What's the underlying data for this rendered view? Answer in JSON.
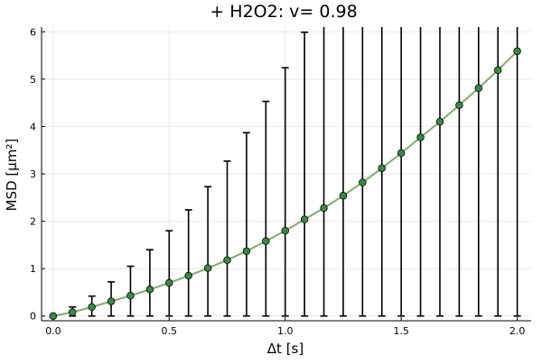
{
  "chart_data": {
    "type": "line",
    "title": "+ H2O2: v= 0.98",
    "xlabel": "Δt [s]",
    "ylabel": "MSD [µm²]",
    "xlim": [
      -0.05,
      2.06
    ],
    "ylim": [
      -0.1,
      6.1
    ],
    "x_ticks": [
      0.0,
      0.5,
      1.0,
      1.5,
      2.0
    ],
    "x_tick_labels": [
      "0.0",
      "0.5",
      "1.0",
      "1.5",
      "2.0"
    ],
    "y_ticks": [
      0,
      1,
      2,
      3,
      4,
      5,
      6
    ],
    "y_tick_labels": [
      "0",
      "1",
      "2",
      "3",
      "4",
      "5",
      "6"
    ],
    "grid": true,
    "legend": "none",
    "colors": {
      "line": "#80ac6d",
      "marker_fill": "#3a8a45",
      "marker_edge": "#111111",
      "errorbar": "#000000",
      "grid": "#e8e8e8",
      "axis": "#000000",
      "text": "#000000"
    },
    "series": [
      {
        "x": [
          0.0,
          0.0833,
          0.1667,
          0.25,
          0.3333,
          0.4167,
          0.5,
          0.5833,
          0.6667,
          0.75,
          0.8333,
          0.9167,
          1.0,
          1.0833,
          1.1667,
          1.25,
          1.3333,
          1.4167,
          1.5,
          1.5833,
          1.6667,
          1.75,
          1.8333,
          1.9167,
          2.0
        ],
        "y": [
          0.0,
          0.08,
          0.19,
          0.31,
          0.43,
          0.56,
          0.7,
          0.85,
          1.01,
          1.18,
          1.37,
          1.58,
          1.8,
          2.04,
          2.28,
          2.54,
          2.82,
          3.12,
          3.44,
          3.77,
          4.1,
          4.45,
          4.81,
          5.19,
          5.59
        ],
        "y_err_low": [
          0.0,
          0.08,
          0.19,
          0.31,
          0.43,
          0.56,
          0.7,
          0.85,
          1.01,
          1.18,
          1.37,
          1.58,
          1.8,
          2.04,
          2.28,
          2.54,
          2.82,
          3.12,
          3.44,
          3.77,
          4.1,
          4.45,
          4.81,
          5.19,
          5.59
        ],
        "y_err_high": [
          0.0,
          0.11,
          0.23,
          0.41,
          0.62,
          0.84,
          1.1,
          1.39,
          1.72,
          2.09,
          2.5,
          2.95,
          3.44,
          3.95,
          4.51,
          5.1,
          5.74,
          6.6,
          7.0,
          7.4,
          7.8,
          8.2,
          8.6,
          9.0,
          9.4
        ]
      }
    ]
  }
}
